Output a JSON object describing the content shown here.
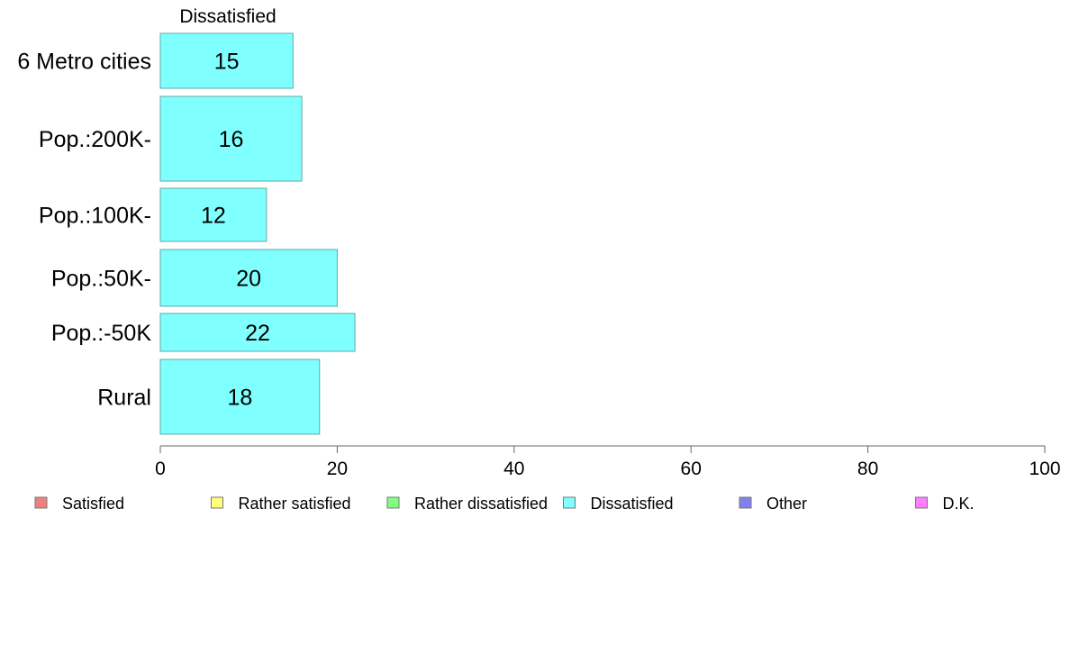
{
  "chart_data": {
    "type": "bar",
    "orientation": "horizontal",
    "series_title": "Dissatisfied",
    "categories": [
      "6 Metro cities",
      "Pop.:200K-",
      "Pop.:100K-",
      "Pop.:50K-",
      "Pop.:-50K",
      "Rural"
    ],
    "values": [
      15,
      16,
      12,
      20,
      22,
      18
    ],
    "value_labels": [
      "15",
      "16",
      "12",
      "20",
      "22",
      "18"
    ],
    "xlim": [
      0,
      100
    ],
    "xticks": [
      0,
      20,
      40,
      60,
      80,
      100
    ],
    "xtick_labels": [
      "0",
      "20",
      "40",
      "60",
      "80",
      "100"
    ],
    "grid": false,
    "legend_position": "bottom",
    "legend": [
      {
        "label": "Satisfied",
        "color": "#f08080"
      },
      {
        "label": "Rather satisfied",
        "color": "#ffff80"
      },
      {
        "label": "Rather dissatisfied",
        "color": "#80ff80"
      },
      {
        "label": "Dissatisfied",
        "color": "#80ffff"
      },
      {
        "label": "Other",
        "color": "#8080f0"
      },
      {
        "label": "D.K.",
        "color": "#ff80ff"
      }
    ],
    "bar_color": "#80ffff"
  }
}
